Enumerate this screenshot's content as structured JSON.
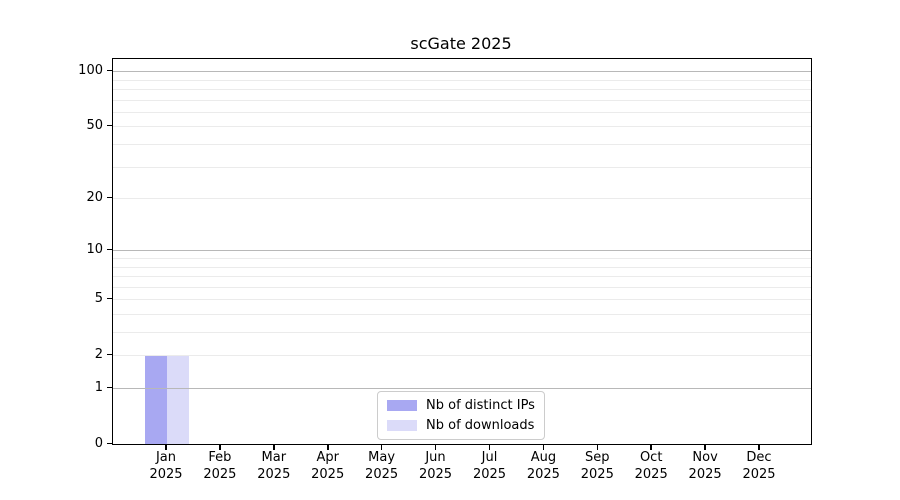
{
  "figure": {
    "background": "#ffffff"
  },
  "chart_data": {
    "type": "bar",
    "title": "scGate 2025",
    "xlabel": "",
    "ylabel": "",
    "categories": [
      "Jan",
      "Feb",
      "Mar",
      "Apr",
      "May",
      "Jun",
      "Jul",
      "Aug",
      "Sep",
      "Oct",
      "Nov",
      "Dec"
    ],
    "category_year": "2025",
    "series": [
      {
        "name": "Nb of distinct IPs",
        "color": "#a8a8f2",
        "values": [
          2,
          0,
          0,
          0,
          0,
          0,
          0,
          0,
          0,
          0,
          0,
          0
        ]
      },
      {
        "name": "Nb of downloads",
        "color": "#dbdbf9",
        "values": [
          2,
          0,
          0,
          0,
          0,
          0,
          0,
          0,
          0,
          0,
          0,
          0
        ]
      }
    ],
    "yaxis": {
      "scale": "log1p",
      "tick_values": [
        0,
        1,
        2,
        5,
        10,
        20,
        50,
        100
      ],
      "major_grid_values": [
        1,
        10,
        100
      ],
      "minor_grid_values": [
        2,
        3,
        4,
        5,
        6,
        7,
        8,
        9,
        20,
        30,
        40,
        50,
        60,
        70,
        80,
        90
      ],
      "ylim": [
        0,
        116
      ]
    },
    "grid": {
      "enabled": true,
      "major_color": "#b8b8b8",
      "minor_color": "#ebebeb"
    },
    "legend": {
      "position": "lower center"
    }
  }
}
